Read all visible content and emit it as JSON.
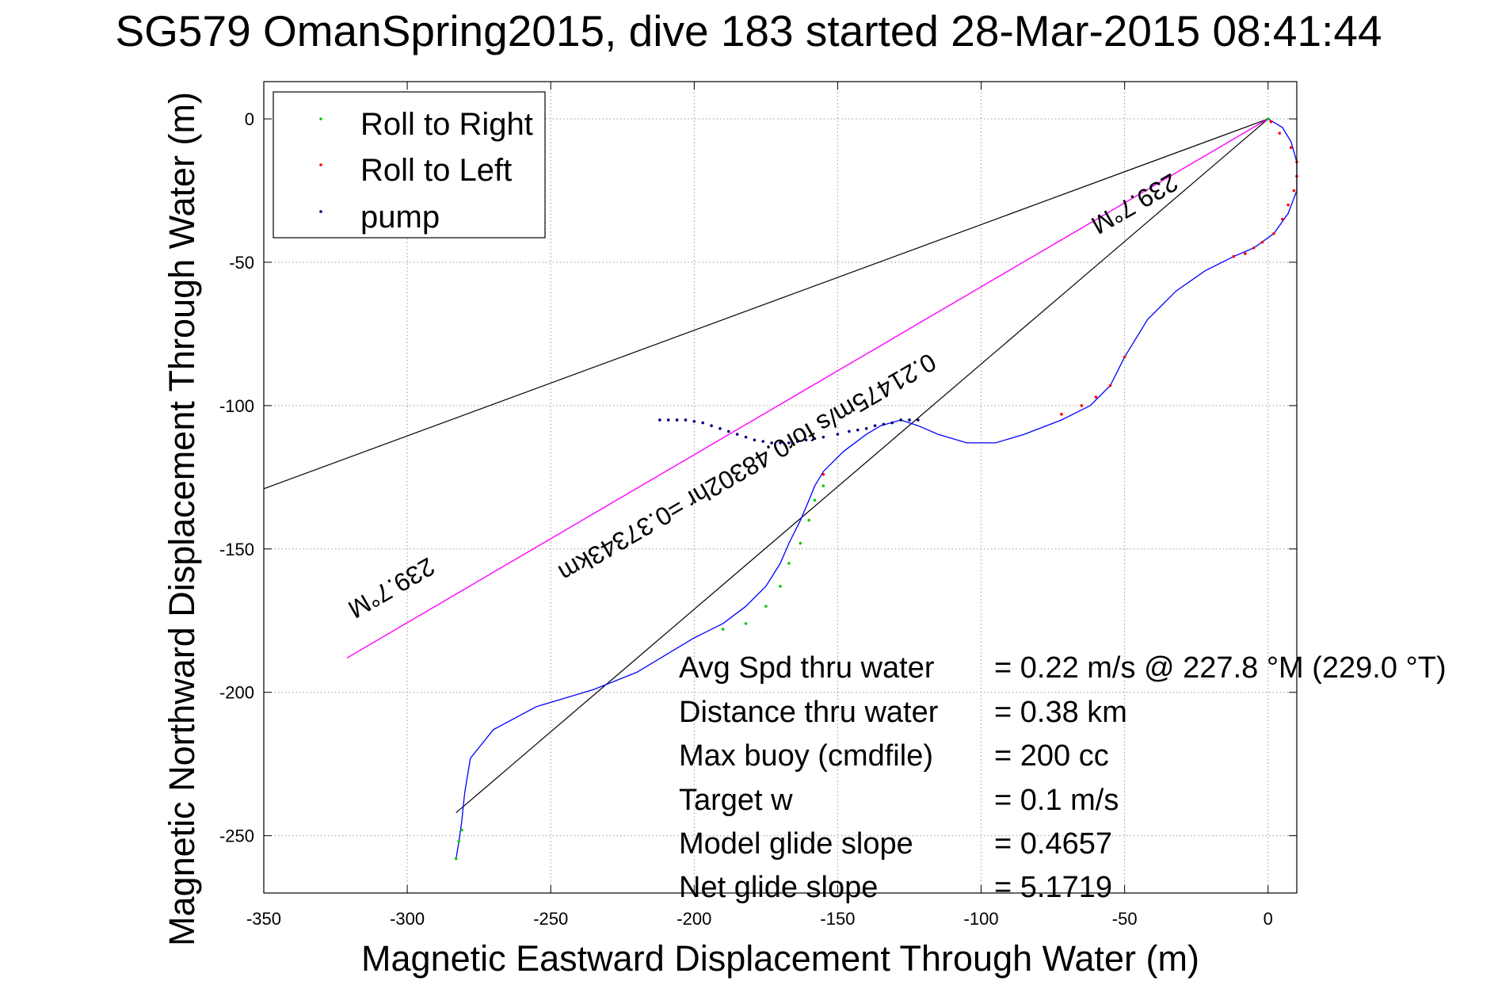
{
  "title": "SG579 OmanSpring2015, dive 183 started 28-Mar-2015 08:41:44",
  "chart_data": {
    "type": "line",
    "xlabel": "Magnetic Eastward Displacement Through Water (m)",
    "ylabel": "Magnetic Northward Displacement Through Water (m)",
    "xlim": [
      -350,
      10
    ],
    "ylim": [
      -270,
      13
    ],
    "xticks": [
      -350,
      -300,
      -250,
      -200,
      -150,
      -100,
      -50,
      0
    ],
    "yticks": [
      0,
      -50,
      -100,
      -150,
      -200,
      -250
    ],
    "grid": true,
    "legend_position": "top-left",
    "legend": [
      {
        "label": "Roll to Right",
        "color": "#00cc00"
      },
      {
        "label": "Roll to Left",
        "color": "#ff0000"
      },
      {
        "label": "pump",
        "color": "#000080"
      }
    ],
    "track": {
      "color": "#0000ff",
      "x": [
        0,
        5,
        8,
        10,
        10,
        7,
        2,
        -5,
        -12,
        -22,
        -32,
        -42,
        -50,
        -55,
        -62,
        -72,
        -85,
        -95,
        -105,
        -115,
        -122,
        -128,
        -135,
        -140,
        -148,
        -155,
        -158,
        -160,
        -163,
        -167,
        -170,
        -175,
        -182,
        -190,
        -200,
        -210,
        -220,
        -235,
        -255,
        -270,
        -278,
        -280,
        -281,
        -282,
        -283
      ],
      "y": [
        0,
        -3,
        -8,
        -15,
        -25,
        -33,
        -40,
        -45,
        -48,
        -53,
        -60,
        -70,
        -83,
        -93,
        -100,
        -105,
        -110,
        -113,
        -113,
        -110,
        -107,
        -105,
        -107,
        -110,
        -116,
        -123,
        -128,
        -133,
        -140,
        -148,
        -155,
        -163,
        -170,
        -176,
        -181,
        -187,
        -193,
        -199,
        -205,
        -213,
        -223,
        -235,
        -245,
        -252,
        -258
      ]
    },
    "roll_right": {
      "x": [
        0,
        -155,
        -158,
        -160,
        -163,
        -167,
        -170,
        -175,
        -182,
        -190,
        -281,
        -282,
        -283
      ],
      "y": [
        0,
        -128,
        -133,
        -140,
        -148,
        -155,
        -163,
        -170,
        -176,
        -178,
        -248,
        -252,
        -258
      ]
    },
    "roll_left": {
      "x": [
        1,
        4,
        8,
        10,
        10,
        9,
        7,
        5,
        2,
        -2,
        -5,
        -8,
        -12,
        -50,
        -55,
        -60,
        -65,
        -72,
        -155
      ],
      "y": [
        -1,
        -5,
        -10,
        -15,
        -20,
        -25,
        -30,
        -35,
        -40,
        -43,
        -45,
        -47,
        -48,
        -83,
        -93,
        -97,
        -100,
        -103,
        -124
      ]
    },
    "pump": {
      "x": [
        -122,
        -125,
        -128,
        -131,
        -134,
        -137,
        -140,
        -143,
        -146,
        -150,
        -155,
        -158,
        -161,
        -164,
        -167,
        -170,
        -173,
        -176,
        -179,
        -182,
        -185,
        -188,
        -191,
        -194,
        -197,
        -200,
        -203,
        -206,
        -209,
        -212
      ],
      "y": [
        -105,
        -105,
        -105,
        -106,
        -106.5,
        -107,
        -108,
        -108.5,
        -109,
        -110,
        -111,
        -111.5,
        -112,
        -112.5,
        -113,
        -113,
        -113,
        -112.5,
        -112,
        -111,
        -110,
        -109,
        -108,
        -107,
        -106,
        -105.5,
        -105,
        -105,
        -105,
        -105
      ]
    },
    "heading_line": {
      "color": "#ff00ff",
      "x": [
        0,
        -321
      ],
      "y": [
        0,
        -188
      ]
    },
    "bracket_lines": {
      "color": "#000000",
      "lines": [
        {
          "x": [
            0,
            -350
          ],
          "y": [
            0,
            -129
          ]
        },
        {
          "x": [
            0,
            -283
          ],
          "y": [
            0,
            -242
          ]
        }
      ]
    },
    "annotations": [
      {
        "text": "239.7°M",
        "x": -307,
        "y": -161,
        "angle": 150
      },
      {
        "text": "0.21475m/s for0.48302hr =0.37343km",
        "x": -183,
        "y": -119,
        "angle": 150
      },
      {
        "text": "239.7°M",
        "x": -48,
        "y": -27,
        "angle": 150
      }
    ]
  },
  "stats": [
    {
      "label": "Avg Spd thru water",
      "value": "=  0.22 m/s @ 227.8  °M (229.0 °T)"
    },
    {
      "label": "Distance thru water",
      "value": "=  0.38 km"
    },
    {
      "label": "Max buoy (cmdfile)",
      "value": "= 200 cc"
    },
    {
      "label": "Target w",
      "value": "= 0.1 m/s"
    },
    {
      "label": "Model glide slope",
      "value": "= 0.4657"
    },
    {
      "label": "Net glide slope",
      "value": "= 5.1719"
    }
  ]
}
